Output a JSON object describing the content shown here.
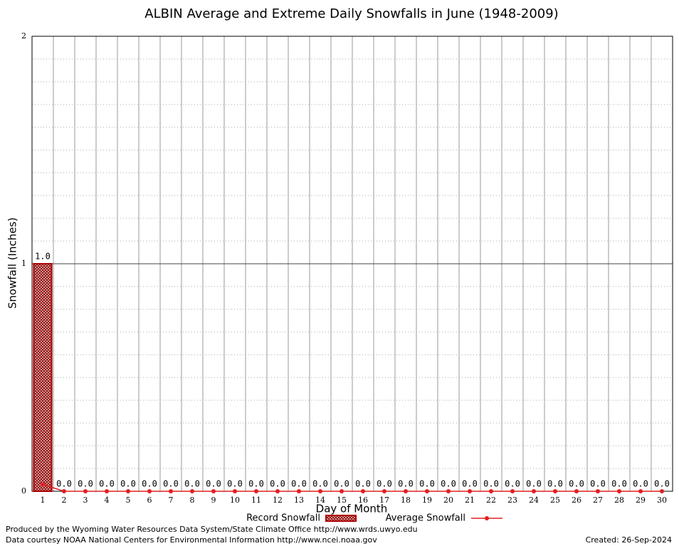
{
  "chart_data": {
    "type": "bar",
    "title": "ALBIN Average and Extreme Daily Snowfalls in June (1948-2009)",
    "x_label": "Day of Month",
    "y_label": "Snowfall (Inches)",
    "categories": [
      "1",
      "2",
      "3",
      "4",
      "5",
      "6",
      "7",
      "8",
      "9",
      "10",
      "11",
      "12",
      "13",
      "14",
      "15",
      "16",
      "17",
      "18",
      "19",
      "20",
      "21",
      "22",
      "23",
      "24",
      "25",
      "26",
      "27",
      "28",
      "29",
      "30"
    ],
    "series": [
      {
        "name": "Record Snowfall",
        "color": "#b00000",
        "values": [
          1.0,
          0,
          0,
          0,
          0,
          0,
          0,
          0,
          0,
          0,
          0,
          0,
          0,
          0,
          0,
          0,
          0,
          0,
          0,
          0,
          0,
          0,
          0,
          0,
          0,
          0,
          0,
          0,
          0,
          0
        ],
        "value_labels": [
          "1.0",
          "0.0",
          "0.0",
          "0.0",
          "0.0",
          "0.0",
          "0.0",
          "0.0",
          "0.0",
          "0.0",
          "0.0",
          "0.0",
          "0.0",
          "0.0",
          "0.0",
          "0.0",
          "0.0",
          "0.0",
          "0.0",
          "0.0",
          "0.0",
          "0.0",
          "0.0",
          "0.0",
          "0.0",
          "0.0",
          "0.0",
          "0.0",
          "0.0",
          "0.0"
        ]
      },
      {
        "name": "Average Snowfall",
        "color": "#e02020",
        "values": [
          0.03,
          0,
          0,
          0,
          0,
          0,
          0,
          0,
          0,
          0,
          0,
          0,
          0,
          0,
          0,
          0,
          0,
          0,
          0,
          0,
          0,
          0,
          0,
          0,
          0,
          0,
          0,
          0,
          0,
          0
        ]
      }
    ],
    "ylim": [
      0,
      2
    ],
    "yticks": [
      0,
      1,
      2
    ],
    "yminorticks": [
      0.1,
      0.2,
      0.3,
      0.4,
      0.5,
      0.6,
      0.7,
      0.8,
      0.9,
      1.1,
      1.2,
      1.3,
      1.4,
      1.5,
      1.6,
      1.7,
      1.8,
      1.9
    ],
    "grid": true,
    "footer_left": [
      "Produced by the Wyoming Water Resources Data System/State Climate Office http://www.wrds.uwyo.edu",
      "Data courtesy NOAA National Centers for Environmental Information http://www.ncei.noaa.gov"
    ],
    "footer_right": "Created:  26-Sep-2024"
  }
}
